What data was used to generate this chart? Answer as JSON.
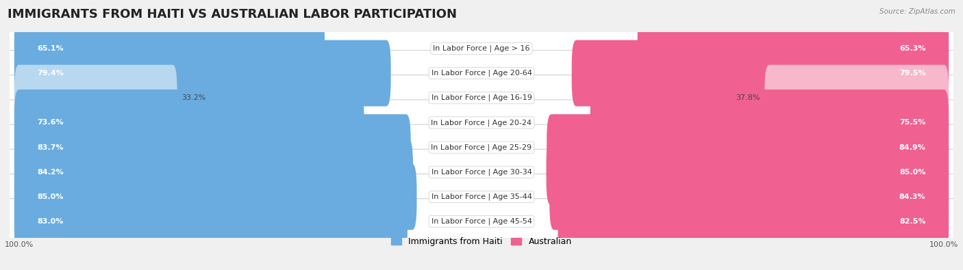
{
  "title": "IMMIGRANTS FROM HAITI VS AUSTRALIAN LABOR PARTICIPATION",
  "source": "Source: ZipAtlas.com",
  "categories": [
    "In Labor Force | Age > 16",
    "In Labor Force | Age 20-64",
    "In Labor Force | Age 16-19",
    "In Labor Force | Age 20-24",
    "In Labor Force | Age 25-29",
    "In Labor Force | Age 30-34",
    "In Labor Force | Age 35-44",
    "In Labor Force | Age 45-54"
  ],
  "haiti_values": [
    65.1,
    79.4,
    33.2,
    73.6,
    83.7,
    84.2,
    85.0,
    83.0
  ],
  "australian_values": [
    65.3,
    79.5,
    37.8,
    75.5,
    84.9,
    85.0,
    84.3,
    82.5
  ],
  "haiti_color": "#6aace0",
  "australian_color": "#f06090",
  "haiti_color_light": "#b8d8f0",
  "australian_color_light": "#f8b8cc",
  "max_value": 100.0,
  "background_color": "#f0f0f0",
  "row_bg_color": "#ffffff",
  "row_border_color": "#d0d0d8",
  "title_fontsize": 13,
  "label_fontsize": 8,
  "value_fontsize": 8,
  "legend_fontsize": 9,
  "axis_label_fontsize": 8
}
